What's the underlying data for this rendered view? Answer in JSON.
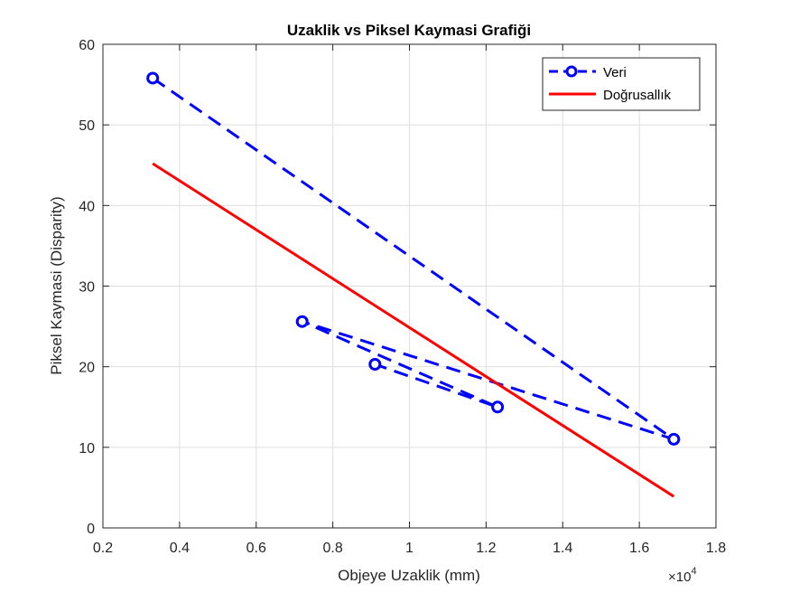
{
  "chart_data": {
    "type": "line",
    "title": "Uzaklik vs Piksel Kaymasi Grafiği",
    "xlabel": "Objeye Uzaklik (mm)",
    "ylabel": "Piksel Kaymasi (Disparity)",
    "x_exponent_label": "×10",
    "x_exponent_power": "4",
    "x_scale_factor": 10000,
    "xlim": [
      2000,
      18000
    ],
    "ylim": [
      0,
      60
    ],
    "x_ticks": [
      2000,
      4000,
      6000,
      8000,
      10000,
      12000,
      14000,
      16000,
      18000
    ],
    "x_tick_labels": [
      "0.2",
      "0.4",
      "0.6",
      "0.8",
      "1",
      "1.2",
      "1.4",
      "1.6",
      "1.8"
    ],
    "y_ticks": [
      0,
      10,
      20,
      30,
      40,
      50,
      60
    ],
    "y_tick_labels": [
      "0",
      "10",
      "20",
      "30",
      "40",
      "50",
      "60"
    ],
    "grid": true,
    "legend_position": "top-right",
    "series": [
      {
        "name": "Veri",
        "color": "#0000ff",
        "line_style": "dashed",
        "marker": "circle",
        "x": [
          3300,
          16900,
          7200,
          12300,
          9100
        ],
        "y": [
          55.8,
          11.0,
          25.6,
          15.0,
          20.3
        ]
      },
      {
        "name": "Doğrusallık",
        "color": "#ff0000",
        "line_style": "solid",
        "marker": "none",
        "x": [
          3300,
          16900
        ],
        "y": [
          45.2,
          3.9
        ]
      }
    ]
  }
}
